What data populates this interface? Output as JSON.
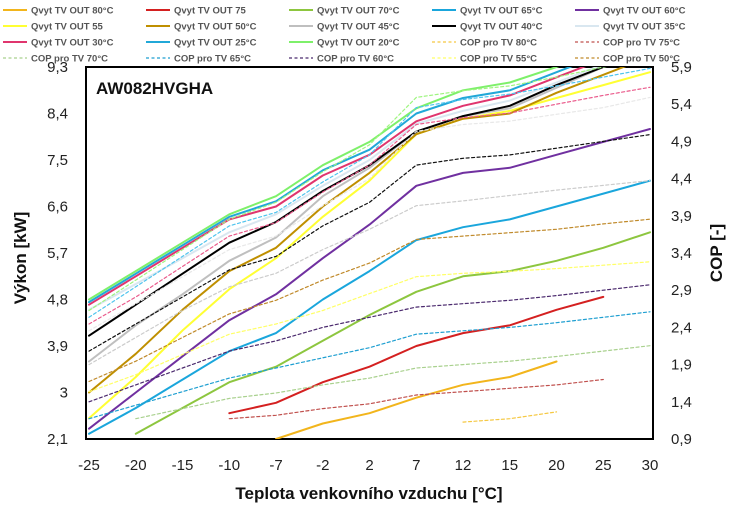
{
  "chart_data": {
    "type": "line",
    "title": "AW082HVGHA",
    "xlabel": "Teplota venkovního vzduchu [°C]",
    "ylabel": "Výkon [kW]",
    "y2label": "COP [-]",
    "categories": [
      "-25",
      "-20",
      "-15",
      "-10",
      "-7",
      "-2",
      "2",
      "7",
      "12",
      "15",
      "20",
      "25",
      "30"
    ],
    "y_ticks": [
      "2,1",
      "3",
      "3,9",
      "4,8",
      "5,7",
      "6,6",
      "7,5",
      "8,4",
      "9,3"
    ],
    "y2_ticks": [
      "0,9",
      "1,4",
      "1,9",
      "2,4",
      "2,9",
      "3,4",
      "3,9",
      "4,4",
      "4,9",
      "5,4",
      "5,9"
    ],
    "ylim": [
      2.1,
      9.3
    ],
    "y2lim": [
      0.9,
      6.4
    ],
    "grid": false,
    "legend_position": "top",
    "series": [
      {
        "name": "Qvyt TV OUT 80°C",
        "axis": "left",
        "dashed": false,
        "color": "#f2b51c",
        "values": [
          null,
          null,
          null,
          null,
          2.1,
          2.4,
          2.6,
          2.9,
          3.15,
          3.3,
          3.6,
          null,
          null
        ]
      },
      {
        "name": "Qvyt TV OUT 75",
        "axis": "left",
        "dashed": false,
        "color": "#d42020",
        "values": [
          null,
          null,
          null,
          2.6,
          2.8,
          3.2,
          3.5,
          3.9,
          4.15,
          4.3,
          4.6,
          4.85,
          null
        ]
      },
      {
        "name": "Qvyt TV OUT 70°C",
        "axis": "left",
        "dashed": false,
        "color": "#8dc63f",
        "values": [
          null,
          2.2,
          2.7,
          3.2,
          3.5,
          4.0,
          4.5,
          4.95,
          5.25,
          5.35,
          5.55,
          5.8,
          6.1
        ]
      },
      {
        "name": "Qvyt TV OUT 65°C",
        "axis": "left",
        "dashed": false,
        "color": "#1aa6dc",
        "values": [
          2.2,
          2.7,
          3.25,
          3.8,
          4.15,
          4.8,
          5.35,
          5.95,
          6.2,
          6.35,
          6.6,
          6.85,
          7.1
        ]
      },
      {
        "name": "Qvyt TV OUT 60°C",
        "axis": "left",
        "dashed": false,
        "color": "#7030a0",
        "values": [
          2.3,
          3.0,
          3.7,
          4.4,
          4.9,
          5.6,
          6.25,
          7.0,
          7.25,
          7.35,
          7.6,
          7.85,
          8.1
        ]
      },
      {
        "name": "Qvyt TV OUT 55",
        "axis": "left",
        "dashed": false,
        "color": "#ffff33",
        "values": [
          2.5,
          3.3,
          4.2,
          5.0,
          5.6,
          6.4,
          7.1,
          8.0,
          8.3,
          8.45,
          8.7,
          8.95,
          9.2
        ]
      },
      {
        "name": "Qvyt TV OUT 50°C",
        "axis": "left",
        "dashed": false,
        "color": "#bf8f00",
        "values": [
          3.0,
          3.75,
          4.6,
          5.35,
          5.8,
          6.6,
          7.25,
          8.0,
          8.3,
          8.4,
          8.8,
          9.15,
          9.5
        ]
      },
      {
        "name": "Qvyt TV OUT 45°C",
        "axis": "left",
        "dashed": false,
        "color": "#bfbfbf",
        "values": [
          3.6,
          4.3,
          4.9,
          5.55,
          6.0,
          6.8,
          7.35,
          8.05,
          8.35,
          8.5,
          8.9,
          9.3,
          9.6
        ]
      },
      {
        "name": "Qvyt TV OUT 40°C",
        "axis": "left",
        "dashed": false,
        "color": "#000000",
        "values": [
          4.1,
          4.7,
          5.3,
          5.9,
          6.3,
          6.9,
          7.4,
          8.05,
          8.35,
          8.55,
          8.95,
          9.3,
          9.6
        ]
      },
      {
        "name": "Qvyt TV OUT 35°C",
        "axis": "left",
        "dashed": false,
        "color": "#d9e7f0",
        "values": [
          4.6,
          5.1,
          5.6,
          6.1,
          6.45,
          7.0,
          7.5,
          8.2,
          8.45,
          8.65,
          9.0,
          9.35,
          9.7
        ]
      },
      {
        "name": "Qvyt TV OUT 30°C",
        "axis": "left",
        "dashed": false,
        "color": "#e0356e",
        "values": [
          4.7,
          5.25,
          5.8,
          6.35,
          6.6,
          7.2,
          7.6,
          8.25,
          8.55,
          8.75,
          9.1,
          9.45,
          9.8
        ]
      },
      {
        "name": "Qvyt TV OUT 25°C",
        "axis": "left",
        "dashed": false,
        "color": "#21a8d8",
        "values": [
          4.75,
          5.3,
          5.85,
          6.4,
          6.7,
          7.3,
          7.7,
          8.4,
          8.7,
          8.85,
          9.2,
          9.55,
          9.9
        ]
      },
      {
        "name": "Qvyt TV OUT 20°C",
        "axis": "left",
        "dashed": false,
        "color": "#7ef06a",
        "values": [
          4.8,
          5.35,
          5.9,
          6.45,
          6.8,
          7.4,
          7.85,
          8.5,
          8.85,
          9.0,
          9.3,
          9.65,
          10.0
        ]
      },
      {
        "name": "COP pro TV 80°C",
        "axis": "right",
        "dashed": true,
        "color": "#f5c842",
        "values": [
          null,
          null,
          null,
          null,
          null,
          null,
          null,
          null,
          1.15,
          1.2,
          1.3,
          null,
          null
        ]
      },
      {
        "name": "COP pro TV 75°C",
        "axis": "right",
        "dashed": true,
        "color": "#c0504d",
        "values": [
          null,
          null,
          null,
          1.2,
          1.25,
          1.35,
          1.42,
          1.55,
          1.6,
          1.65,
          1.7,
          1.78,
          null
        ]
      },
      {
        "name": "COP pro TV 70°C",
        "axis": "right",
        "dashed": true,
        "color": "#a9d18e",
        "values": [
          null,
          1.2,
          1.35,
          1.5,
          1.58,
          1.7,
          1.8,
          1.95,
          2.0,
          2.05,
          2.12,
          2.2,
          2.28
        ]
      },
      {
        "name": "COP pro TV 65°C",
        "axis": "right",
        "dashed": true,
        "color": "#1f9fd1",
        "values": [
          1.2,
          1.4,
          1.6,
          1.8,
          1.95,
          2.1,
          2.25,
          2.45,
          2.5,
          2.55,
          2.62,
          2.7,
          2.78
        ]
      },
      {
        "name": "COP pro TV 60°C",
        "axis": "right",
        "dashed": true,
        "color": "#4b2a6e",
        "values": [
          1.45,
          1.7,
          1.95,
          2.2,
          2.35,
          2.55,
          2.7,
          2.85,
          2.9,
          2.95,
          3.02,
          3.1,
          3.18
        ]
      },
      {
        "name": "COP pro TV 55°C",
        "axis": "right",
        "dashed": true,
        "color": "#ffff66",
        "values": [
          1.6,
          1.85,
          2.15,
          2.45,
          2.6,
          2.8,
          3.05,
          3.3,
          3.35,
          3.38,
          3.42,
          3.47,
          3.52
        ]
      },
      {
        "name": "COP pro TV 50°C",
        "axis": "right",
        "dashed": true,
        "color": "#c08a2b",
        "values": [
          1.75,
          2.05,
          2.4,
          2.75,
          2.95,
          3.25,
          3.5,
          3.85,
          3.9,
          3.95,
          4.0,
          4.08,
          4.15
        ]
      },
      {
        "name": "",
        "axis": "right",
        "dashed": true,
        "color": "#cccccc",
        "values": [
          2.0,
          2.4,
          2.8,
          3.15,
          3.35,
          3.7,
          4.0,
          4.35,
          4.42,
          4.5,
          4.58,
          4.65,
          4.72
        ]
      },
      {
        "name": "",
        "axis": "right",
        "dashed": true,
        "color": "#111111",
        "values": [
          2.2,
          2.6,
          3.0,
          3.4,
          3.6,
          4.05,
          4.4,
          4.95,
          5.05,
          5.1,
          5.2,
          5.3,
          5.4
        ]
      },
      {
        "name": "",
        "axis": "right",
        "dashed": true,
        "color": "#e8e8e8",
        "values": [
          2.5,
          2.9,
          3.3,
          3.7,
          3.9,
          4.35,
          4.75,
          5.45,
          5.55,
          5.6,
          5.7,
          5.8,
          5.95
        ]
      },
      {
        "name": "",
        "axis": "right",
        "dashed": true,
        "color": "#ea5b8c",
        "values": [
          2.6,
          3.0,
          3.45,
          3.9,
          4.1,
          4.55,
          4.95,
          5.55,
          5.65,
          5.72,
          5.85,
          5.98,
          6.1
        ]
      },
      {
        "name": "",
        "axis": "right",
        "dashed": true,
        "color": "#4fc4ee",
        "values": [
          2.7,
          3.15,
          3.6,
          4.05,
          4.25,
          4.7,
          5.1,
          5.8,
          5.92,
          6.0,
          6.12,
          6.25,
          6.38
        ]
      },
      {
        "name": "",
        "axis": "right",
        "dashed": true,
        "color": "#9ef57f",
        "values": [
          2.8,
          3.25,
          3.7,
          4.15,
          4.4,
          4.85,
          5.25,
          5.95,
          6.05,
          6.12,
          6.25,
          6.4,
          6.5
        ]
      }
    ]
  }
}
